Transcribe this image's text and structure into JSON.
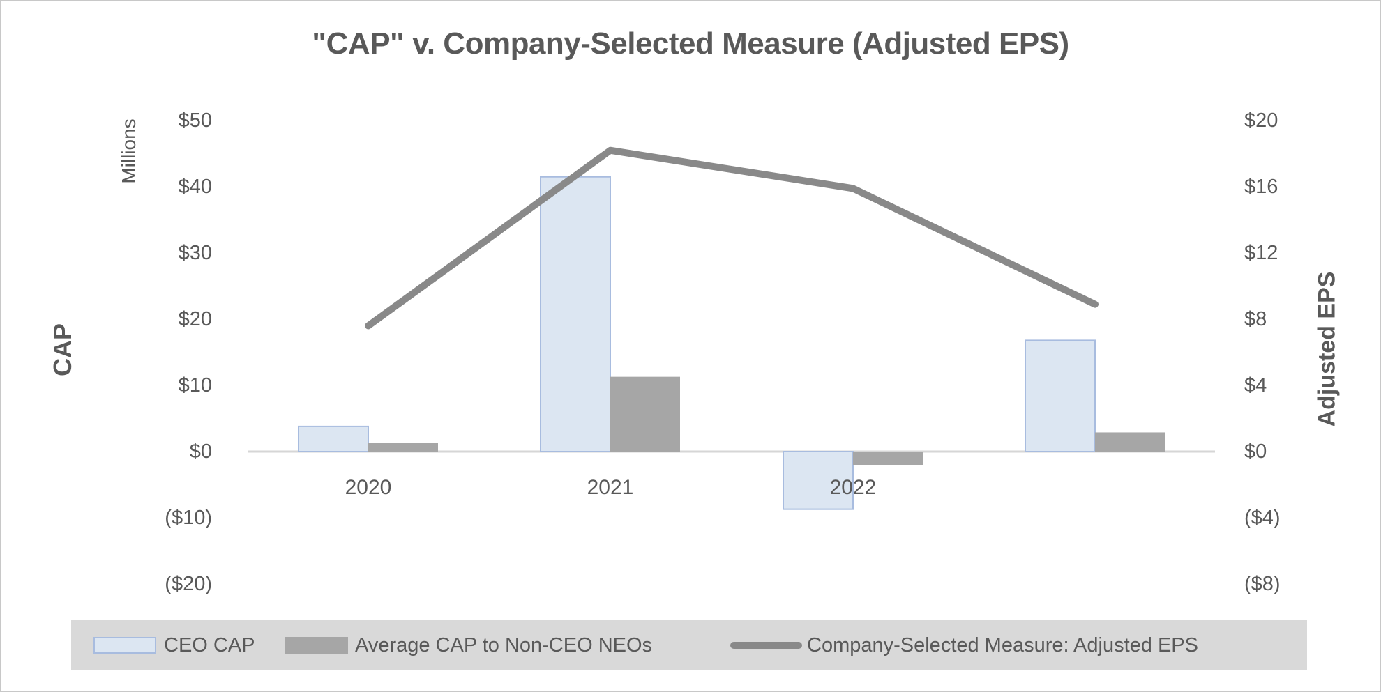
{
  "title": "\"CAP\" v. Company-Selected Measure (Adjusted EPS)",
  "left_axis": {
    "label": "CAP",
    "units_label": "Millions",
    "ticks": [
      "$50",
      "$40",
      "$30",
      "$20",
      "$10",
      "$0",
      "($10)",
      "($20)"
    ],
    "tick_values": [
      50,
      40,
      30,
      20,
      10,
      0,
      -10,
      -20
    ]
  },
  "right_axis": {
    "label": "Adjusted EPS",
    "ticks": [
      "$20",
      "$16",
      "$12",
      "$8",
      "$4",
      "$0",
      "($4)",
      "($8)"
    ],
    "tick_values": [
      20,
      16,
      12,
      8,
      4,
      0,
      -4,
      -8
    ]
  },
  "x_axis": {
    "labels": [
      "2020",
      "2021",
      "2022",
      ""
    ]
  },
  "legend": {
    "ceo_label": "CEO CAP",
    "avg_label": "Average CAP to Non-CEO NEOs",
    "line_label": "Company-Selected Measure: Adjusted EPS"
  },
  "colors": {
    "text": "#595959",
    "ceo_bar_fill": "#dce6f2",
    "ceo_bar_border": "#a8bcdf",
    "avg_bar_fill": "#a6a6a6",
    "eps_line": "#898989",
    "legend_bg": "#d9d9d9",
    "axis_line": "#d6d6d6"
  },
  "chart_data": {
    "type": "combo-bar-line",
    "title": "\"CAP\" v. Company-Selected Measure (Adjusted EPS)",
    "categories": [
      "2020",
      "2021",
      "2022",
      ""
    ],
    "series": [
      {
        "name": "CEO CAP",
        "type": "bar",
        "axis": "left",
        "unit": "millions USD",
        "values": [
          3.8,
          41.5,
          -8.7,
          16.8
        ]
      },
      {
        "name": "Average CAP to Non-CEO NEOs",
        "type": "bar",
        "axis": "left",
        "unit": "millions USD",
        "values": [
          1.3,
          11.3,
          -2.0,
          2.9
        ]
      },
      {
        "name": "Company-Selected Measure: Adjusted EPS",
        "type": "line",
        "axis": "right",
        "unit": "USD per share",
        "values": [
          7.6,
          18.2,
          15.9,
          8.9
        ]
      }
    ],
    "left_ylabel": "CAP (Millions)",
    "right_ylabel": "Adjusted EPS",
    "left_ylim": [
      -20,
      50
    ],
    "right_ylim": [
      -8,
      20
    ],
    "grid": false,
    "legend_position": "bottom"
  }
}
